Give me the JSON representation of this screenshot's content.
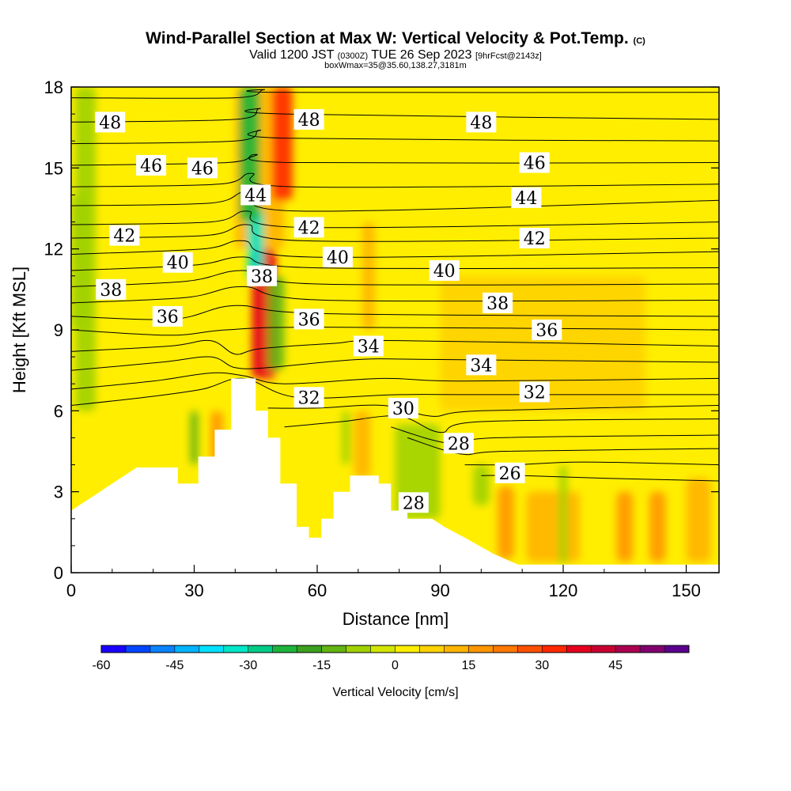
{
  "header": {
    "title": "Wind-Parallel Section at Max W: Vertical Velocity & Pot.Temp.",
    "copyright": "(C)",
    "valid_prefix": "Valid 1200 JST",
    "valid_utc": "(0300Z)",
    "valid_date": "TUE 26 Sep 2023",
    "forecast": "[9hrFcst@2143z]",
    "box_info": "boxWmax=35@35.60,138.27,3181m"
  },
  "chart_data": {
    "type": "heatmap",
    "xlabel": "Distance [nm]",
    "ylabel": "Height [Kft MSL]",
    "xlim": [
      0,
      158
    ],
    "ylim": [
      0,
      18
    ],
    "x_ticks": [
      "0",
      "30",
      "60",
      "90",
      "120",
      "150"
    ],
    "y_ticks": [
      "0",
      "3",
      "6",
      "9",
      "12",
      "15",
      "18"
    ],
    "terrain_kft": [
      [
        0,
        2.3
      ],
      [
        3,
        2.6
      ],
      [
        6,
        2.9
      ],
      [
        9,
        3.2
      ],
      [
        12,
        3.5
      ],
      [
        16,
        3.9
      ],
      [
        26,
        3.9
      ],
      [
        26,
        3.3
      ],
      [
        31,
        3.3
      ],
      [
        31,
        4.3
      ],
      [
        35,
        4.3
      ],
      [
        35,
        5.3
      ],
      [
        39,
        5.3
      ],
      [
        39,
        7.2
      ],
      [
        45,
        7.2
      ],
      [
        45,
        6.0
      ],
      [
        48,
        6.0
      ],
      [
        48,
        5.0
      ],
      [
        51,
        5.0
      ],
      [
        51,
        3.3
      ],
      [
        55,
        3.3
      ],
      [
        55,
        1.7
      ],
      [
        58,
        1.7
      ],
      [
        58,
        1.3
      ],
      [
        61,
        1.3
      ],
      [
        61,
        2.0
      ],
      [
        64,
        2.0
      ],
      [
        64,
        3.0
      ],
      [
        68,
        3.0
      ],
      [
        68,
        3.6
      ],
      [
        75,
        3.6
      ],
      [
        75,
        3.3
      ],
      [
        78,
        3.3
      ],
      [
        78,
        2.3
      ],
      [
        82,
        2.3
      ],
      [
        82,
        2.0
      ],
      [
        88,
        2.0
      ],
      [
        91,
        1.7
      ],
      [
        96,
        1.3
      ],
      [
        103,
        0.7
      ],
      [
        109,
        0.3
      ],
      [
        158,
        0.3
      ]
    ],
    "theta_label_values": [
      "48",
      "46",
      "44",
      "42",
      "40",
      "38",
      "36",
      "34",
      "32",
      "30",
      "28",
      "26"
    ],
    "contour_labels": [
      {
        "text": "48",
        "x": 9.5,
        "y": 16.7
      },
      {
        "text": "46",
        "x": 19.5,
        "y": 15.1
      },
      {
        "text": "46",
        "x": 32,
        "y": 15.0
      },
      {
        "text": "44",
        "x": 45,
        "y": 14.0
      },
      {
        "text": "42",
        "x": 13,
        "y": 12.5
      },
      {
        "text": "40",
        "x": 26,
        "y": 11.5
      },
      {
        "text": "38",
        "x": 9.7,
        "y": 10.5
      },
      {
        "text": "38",
        "x": 46.5,
        "y": 11.0
      },
      {
        "text": "36",
        "x": 23.5,
        "y": 9.5
      },
      {
        "text": "48",
        "x": 58,
        "y": 16.8
      },
      {
        "text": "42",
        "x": 58,
        "y": 12.8
      },
      {
        "text": "40",
        "x": 65,
        "y": 11.7
      },
      {
        "text": "36",
        "x": 58,
        "y": 9.4
      },
      {
        "text": "34",
        "x": 72.5,
        "y": 8.4
      },
      {
        "text": "32",
        "x": 58,
        "y": 6.5
      },
      {
        "text": "30",
        "x": 81,
        "y": 6.1
      },
      {
        "text": "28",
        "x": 94.5,
        "y": 4.8
      },
      {
        "text": "26",
        "x": 107,
        "y": 3.7
      },
      {
        "text": "28",
        "x": 83.5,
        "y": 2.6
      },
      {
        "text": "48",
        "x": 100,
        "y": 16.7
      },
      {
        "text": "46",
        "x": 113,
        "y": 15.2
      },
      {
        "text": "44",
        "x": 111,
        "y": 13.9
      },
      {
        "text": "42",
        "x": 113,
        "y": 12.4
      },
      {
        "text": "40",
        "x": 91,
        "y": 11.2
      },
      {
        "text": "38",
        "x": 104,
        "y": 10.0
      },
      {
        "text": "36",
        "x": 116,
        "y": 9.0
      },
      {
        "text": "34",
        "x": 100,
        "y": 7.7
      },
      {
        "text": "32",
        "x": 113,
        "y": 6.7
      }
    ],
    "theta_lines": [
      {
        "v": 49,
        "pts": [
          [
            0,
            17.6
          ],
          [
            40,
            17.6
          ],
          [
            47,
            17.9
          ],
          [
            52,
            17.8
          ],
          [
            158,
            17.8
          ]
        ]
      },
      {
        "v": 48,
        "pts": [
          [
            0,
            16.7
          ],
          [
            40,
            16.8
          ],
          [
            46,
            17.2
          ],
          [
            52,
            17.0
          ],
          [
            158,
            16.8
          ]
        ]
      },
      {
        "v": 47,
        "pts": [
          [
            0,
            15.9
          ],
          [
            40,
            16.0
          ],
          [
            46,
            16.4
          ],
          [
            53,
            16.1
          ],
          [
            158,
            16.0
          ]
        ]
      },
      {
        "v": 46,
        "pts": [
          [
            0,
            15.1
          ],
          [
            38,
            15.2
          ],
          [
            45,
            15.5
          ],
          [
            54,
            15.2
          ],
          [
            158,
            15.2
          ]
        ]
      },
      {
        "v": 45,
        "pts": [
          [
            0,
            14.3
          ],
          [
            36,
            14.4
          ],
          [
            44,
            14.8
          ],
          [
            55,
            14.3
          ],
          [
            158,
            14.4
          ]
        ]
      },
      {
        "v": 44,
        "pts": [
          [
            0,
            13.6
          ],
          [
            34,
            13.7
          ],
          [
            43,
            14.1
          ],
          [
            56,
            13.4
          ],
          [
            158,
            13.8
          ]
        ]
      },
      {
        "v": 43,
        "pts": [
          [
            0,
            12.9
          ],
          [
            34,
            13.0
          ],
          [
            43,
            13.4
          ],
          [
            56,
            12.8
          ],
          [
            158,
            13.0
          ]
        ]
      },
      {
        "v": 42,
        "pts": [
          [
            0,
            12.4
          ],
          [
            33,
            12.5
          ],
          [
            43,
            12.9
          ],
          [
            57,
            12.3
          ],
          [
            158,
            12.4
          ]
        ]
      },
      {
        "v": 41,
        "pts": [
          [
            0,
            11.8
          ],
          [
            32,
            12.0
          ],
          [
            42,
            12.3
          ],
          [
            58,
            11.7
          ],
          [
            158,
            11.9
          ]
        ]
      },
      {
        "v": 40,
        "pts": [
          [
            0,
            11.2
          ],
          [
            30,
            11.4
          ],
          [
            42,
            11.7
          ],
          [
            59,
            11.3
          ],
          [
            158,
            11.3
          ]
        ]
      },
      {
        "v": 39,
        "pts": [
          [
            0,
            10.6
          ],
          [
            28,
            10.8
          ],
          [
            42,
            11.2
          ],
          [
            60,
            10.7
          ],
          [
            158,
            10.7
          ]
        ]
      },
      {
        "v": 38,
        "pts": [
          [
            0,
            10.0
          ],
          [
            28,
            10.2
          ],
          [
            42,
            10.6
          ],
          [
            62,
            10.1
          ],
          [
            158,
            10.1
          ]
        ]
      },
      {
        "v": 37,
        "pts": [
          [
            0,
            9.5
          ],
          [
            25,
            9.4
          ],
          [
            40,
            9.9
          ],
          [
            62,
            9.6
          ],
          [
            158,
            9.5
          ]
        ]
      },
      {
        "v": 36,
        "pts": [
          [
            0,
            9.0
          ],
          [
            24,
            8.8
          ],
          [
            38,
            9.0
          ],
          [
            62,
            9.1
          ],
          [
            158,
            9.0
          ]
        ]
      },
      {
        "v": 35,
        "pts": [
          [
            0,
            8.2
          ],
          [
            24,
            8.4
          ],
          [
            34,
            8.6
          ],
          [
            40,
            8.1
          ],
          [
            46,
            8.3
          ],
          [
            64,
            8.5
          ],
          [
            80,
            8.6
          ],
          [
            158,
            8.4
          ]
        ]
      },
      {
        "v": 34,
        "pts": [
          [
            0,
            7.5
          ],
          [
            22,
            7.8
          ],
          [
            34,
            8.0
          ],
          [
            40,
            7.6
          ],
          [
            48,
            7.6
          ],
          [
            70,
            7.9
          ],
          [
            90,
            7.9
          ],
          [
            158,
            7.8
          ]
        ]
      },
      {
        "v": 33,
        "pts": [
          [
            0,
            6.8
          ],
          [
            20,
            7.1
          ],
          [
            34,
            7.4
          ],
          [
            42,
            7.3
          ],
          [
            52,
            7.0
          ],
          [
            76,
            7.2
          ],
          [
            96,
            7.1
          ],
          [
            158,
            7.2
          ]
        ]
      },
      {
        "v": 32,
        "pts": [
          [
            0,
            6.2
          ],
          [
            18,
            6.5
          ],
          [
            32,
            6.8
          ],
          [
            42,
            7.2
          ],
          [
            55,
            6.5
          ],
          [
            80,
            6.6
          ],
          [
            100,
            6.6
          ],
          [
            158,
            6.6
          ]
        ]
      },
      {
        "v": 31,
        "pts": [
          [
            48,
            6.1
          ],
          [
            60,
            6.1
          ],
          [
            76,
            6.2
          ],
          [
            88,
            5.8
          ],
          [
            100,
            6.0
          ],
          [
            158,
            6.2
          ]
        ]
      },
      {
        "v": 30,
        "pts": [
          [
            52,
            5.4
          ],
          [
            66,
            5.6
          ],
          [
            80,
            5.8
          ],
          [
            90,
            5.2
          ],
          [
            100,
            5.6
          ],
          [
            158,
            5.7
          ]
        ]
      },
      {
        "v": 29,
        "pts": [
          [
            78,
            5.4
          ],
          [
            92,
            4.8
          ],
          [
            104,
            5.0
          ],
          [
            158,
            5.1
          ]
        ]
      },
      {
        "v": 28,
        "pts": [
          [
            82,
            5.0
          ],
          [
            95,
            4.4
          ],
          [
            106,
            4.5
          ],
          [
            158,
            4.6
          ]
        ]
      },
      {
        "v": 27,
        "pts": [
          [
            96,
            4.0
          ],
          [
            108,
            4.0
          ],
          [
            125,
            4.1
          ],
          [
            158,
            4.0
          ]
        ]
      },
      {
        "v": 26,
        "pts": [
          [
            100,
            3.6
          ],
          [
            110,
            3.6
          ],
          [
            130,
            3.5
          ],
          [
            158,
            3.4
          ]
        ]
      }
    ],
    "cells": [
      {
        "x": [
          40,
          52
        ],
        "y": [
          12,
          18
        ],
        "w": 12
      },
      {
        "x": [
          44,
          50
        ],
        "y": [
          7.2,
          12
        ],
        "w": 35
      },
      {
        "x": [
          49,
          54
        ],
        "y": [
          13.8,
          18
        ],
        "w": 30
      },
      {
        "x": [
          43,
          47
        ],
        "y": [
          10.8,
          13.5
        ],
        "w": -35
      },
      {
        "x": [
          41,
          46
        ],
        "y": [
          13,
          18
        ],
        "w": -25
      },
      {
        "x": [
          48,
          52
        ],
        "y": [
          7.5,
          11
        ],
        "w": -15
      },
      {
        "x": [
          1,
          6
        ],
        "y": [
          6,
          18
        ],
        "w": -10
      },
      {
        "x": [
          29,
          31
        ],
        "y": [
          4,
          6
        ],
        "w": -15
      },
      {
        "x": [
          66,
          68
        ],
        "y": [
          4,
          6
        ],
        "w": -10
      },
      {
        "x": [
          79,
          90
        ],
        "y": [
          2,
          5.5
        ],
        "w": -12
      },
      {
        "x": [
          98,
          102
        ],
        "y": [
          2.5,
          4
        ],
        "w": -10
      },
      {
        "x": [
          104,
          108
        ],
        "y": [
          0.5,
          3.2
        ],
        "w": 15
      },
      {
        "x": [
          111,
          124
        ],
        "y": [
          0.4,
          3
        ],
        "w": 12
      },
      {
        "x": [
          133,
          137
        ],
        "y": [
          0.4,
          3
        ],
        "w": 15
      },
      {
        "x": [
          141,
          145
        ],
        "y": [
          0.4,
          3
        ],
        "w": 15
      },
      {
        "x": [
          150,
          156
        ],
        "y": [
          0.4,
          3.5
        ],
        "w": 10
      },
      {
        "x": [
          69,
          73
        ],
        "y": [
          3.5,
          6
        ],
        "w": 12
      },
      {
        "x": [
          34,
          37
        ],
        "y": [
          4,
          6
        ],
        "w": 15
      },
      {
        "x": [
          119,
          121
        ],
        "y": [
          0.3,
          4
        ],
        "w": -8
      },
      {
        "x": [
          71,
          74
        ],
        "y": [
          9,
          13
        ],
        "w": 8
      },
      {
        "x": [
          0,
          4
        ],
        "y": [
          9,
          14
        ],
        "w": -8
      },
      {
        "x": [
          90,
          140
        ],
        "y": [
          6,
          11
        ],
        "w": 5
      }
    ]
  },
  "colorbar": {
    "title": "Vertical Velocity [cm/s]",
    "tick_labels": [
      "-60",
      "-45",
      "-30",
      "-15",
      "0",
      "15",
      "30",
      "45"
    ],
    "colors": [
      "#1a00ff",
      "#0046ff",
      "#0a82ff",
      "#00b4ff",
      "#00e1ff",
      "#00e6c8",
      "#00cc88",
      "#1eb43c",
      "#3ca01e",
      "#64b414",
      "#a0d200",
      "#d2e600",
      "#ffee00",
      "#ffd200",
      "#ffb400",
      "#ff9600",
      "#ff7800",
      "#ff5000",
      "#ff2800",
      "#e6001e",
      "#c80032",
      "#aa0050",
      "#82006e",
      "#5a008c"
    ]
  }
}
